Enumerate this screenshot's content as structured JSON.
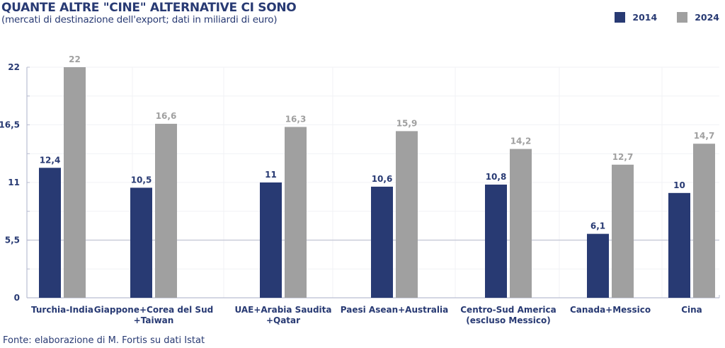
{
  "header": {
    "title": "QUANTE ALTRE \"CINE\" ALTERNATIVE CI SONO",
    "subtitle": "(mercati di destinazione dell'export; dati in miliardi di euro)"
  },
  "legend": [
    {
      "label": "2014",
      "color": "#283a73"
    },
    {
      "label": "2024",
      "color": "#a0a0a0"
    }
  ],
  "footer": {
    "source": "Fonte: elaborazione di M. Fortis su dati Istat"
  },
  "chart_data": {
    "type": "bar",
    "title": "QUANTE ALTRE \"CINE\" ALTERNATIVE CI SONO",
    "subtitle": "(mercati di destinazione dell'export; dati in miliardi di euro)",
    "xlabel": "",
    "ylabel": "",
    "ylim": [
      0,
      22
    ],
    "yticks": [
      0,
      5.5,
      11,
      16.5,
      22
    ],
    "ytick_labels": [
      "0",
      "5,5",
      "11",
      "16,5",
      "22"
    ],
    "grid": true,
    "legend_position": "top-right",
    "categories": [
      [
        "Turchia-India"
      ],
      [
        "Giappone+Corea del Sud",
        "+Taiwan"
      ],
      [
        "UAE+Arabia Saudita",
        "+Qatar"
      ],
      [
        "Paesi Asean+Australia"
      ],
      [
        "Centro-Sud America",
        "(escluso Messico)"
      ],
      [
        "Canada+Messico"
      ],
      [
        "Cina"
      ]
    ],
    "series": [
      {
        "name": "2014",
        "color": "#283a73",
        "values": [
          12.4,
          10.5,
          11,
          10.6,
          10.8,
          6.1,
          10
        ],
        "labels": [
          "12,4",
          "10,5",
          "11",
          "10,6",
          "10,8",
          "6,1",
          "10"
        ]
      },
      {
        "name": "2024",
        "color": "#a0a0a0",
        "values": [
          22,
          16.6,
          16.3,
          15.9,
          14.2,
          12.7,
          14.7
        ],
        "labels": [
          "22",
          "16,6",
          "16,3",
          "15,9",
          "14,2",
          "12,7",
          "14,7"
        ]
      }
    ]
  }
}
